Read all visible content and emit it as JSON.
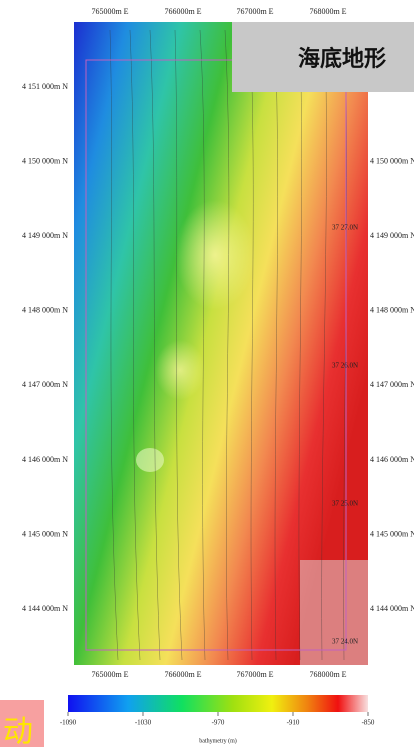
{
  "title": "海底地形",
  "badge": "动",
  "easting_labels": [
    "765000m E",
    "766000m E",
    "767000m E",
    "768000m E"
  ],
  "northing_labels": [
    "4 151 000m N",
    "4 150 000m N",
    "4 149 000m N",
    "4 148 000m N",
    "4 147 000m N",
    "4 146 000m N",
    "4 145 000m N",
    "4 144 000m N"
  ],
  "latitude_labels": [
    "37 27.0N",
    "37 26.0N",
    "37 25.0N",
    "37 24.0N"
  ],
  "colorbar": {
    "label": "bathymetry (m)",
    "lim": [
      -1090,
      -850
    ],
    "ticks": [
      -1090,
      -1030,
      -970,
      -910,
      -850
    ]
  }
}
